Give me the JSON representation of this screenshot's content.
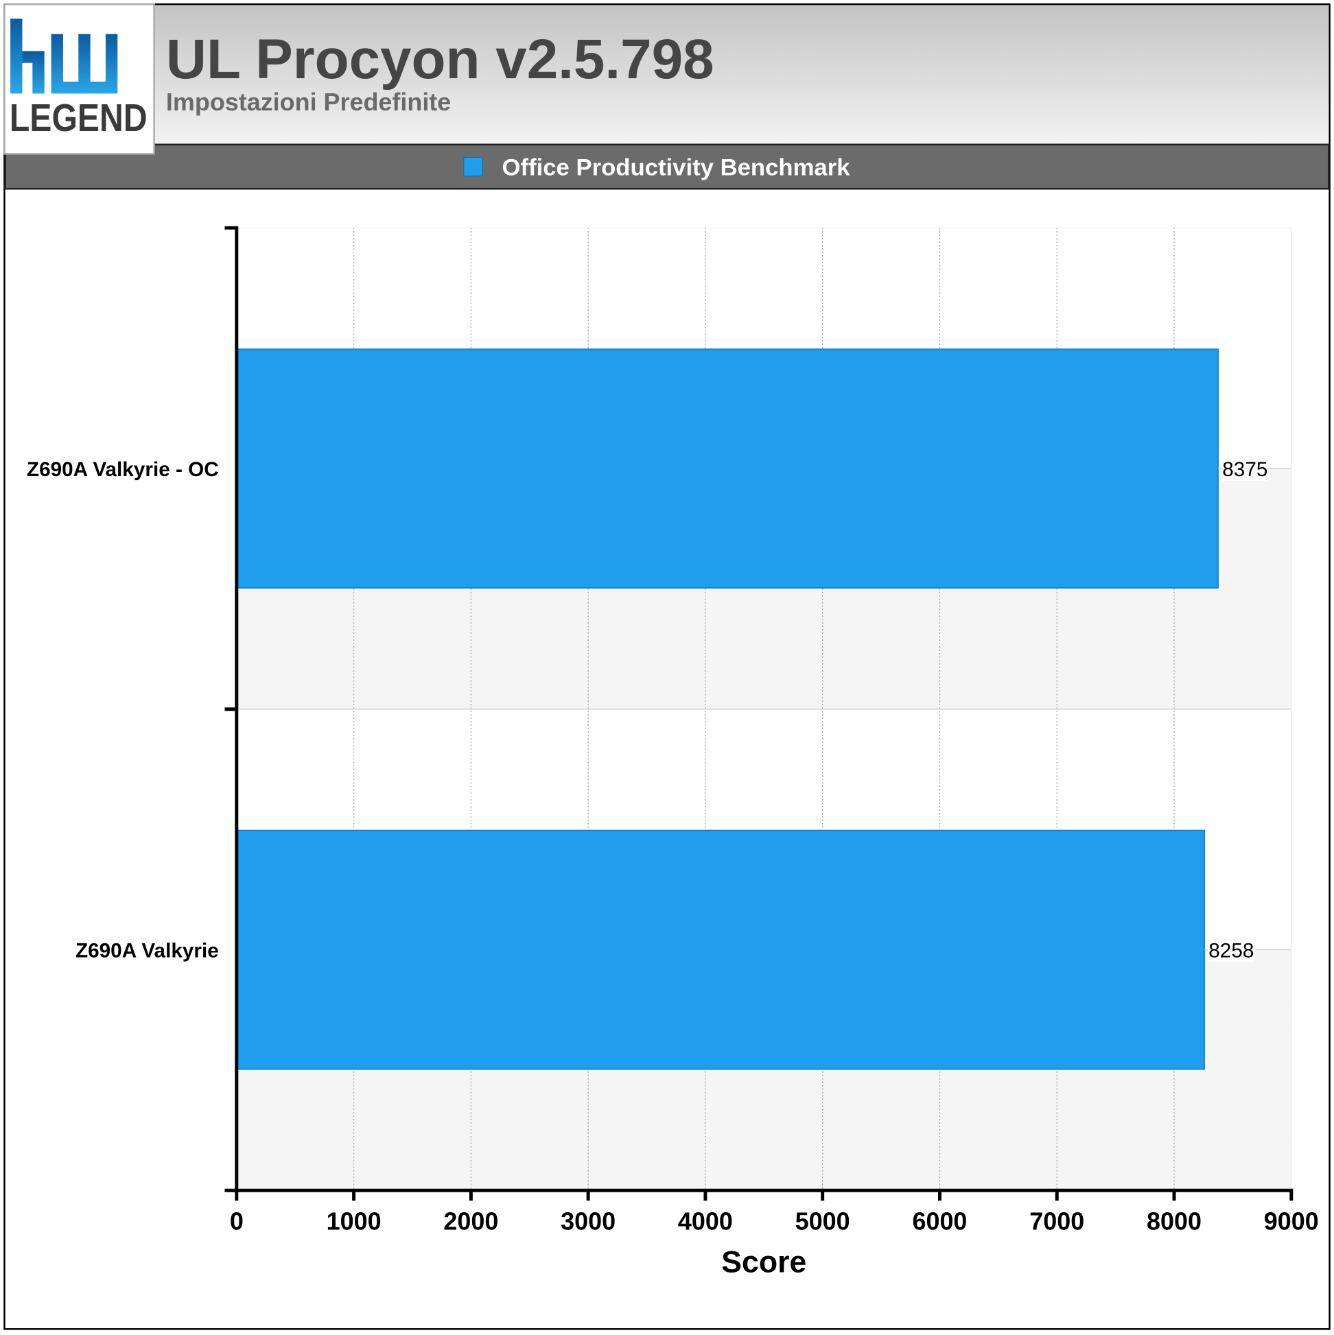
{
  "logo": {
    "text": "LEGEND"
  },
  "chart_data": {
    "type": "bar",
    "orientation": "horizontal",
    "title": "UL Procyon v2.5.798",
    "subtitle": "Impostazioni Predefinite",
    "categories": [
      "Z690A Valkyrie - OC",
      "Z690A Valkyrie"
    ],
    "series": [
      {
        "name": "Office Productivity Benchmark",
        "color": "#219dee",
        "values": [
          8375,
          8258
        ]
      }
    ],
    "xlabel": "Score",
    "xlim": [
      0,
      9000
    ],
    "xticks": [
      0,
      1000,
      2000,
      3000,
      4000,
      5000,
      6000,
      7000,
      8000,
      9000
    ],
    "grid": true,
    "legend": "top"
  }
}
